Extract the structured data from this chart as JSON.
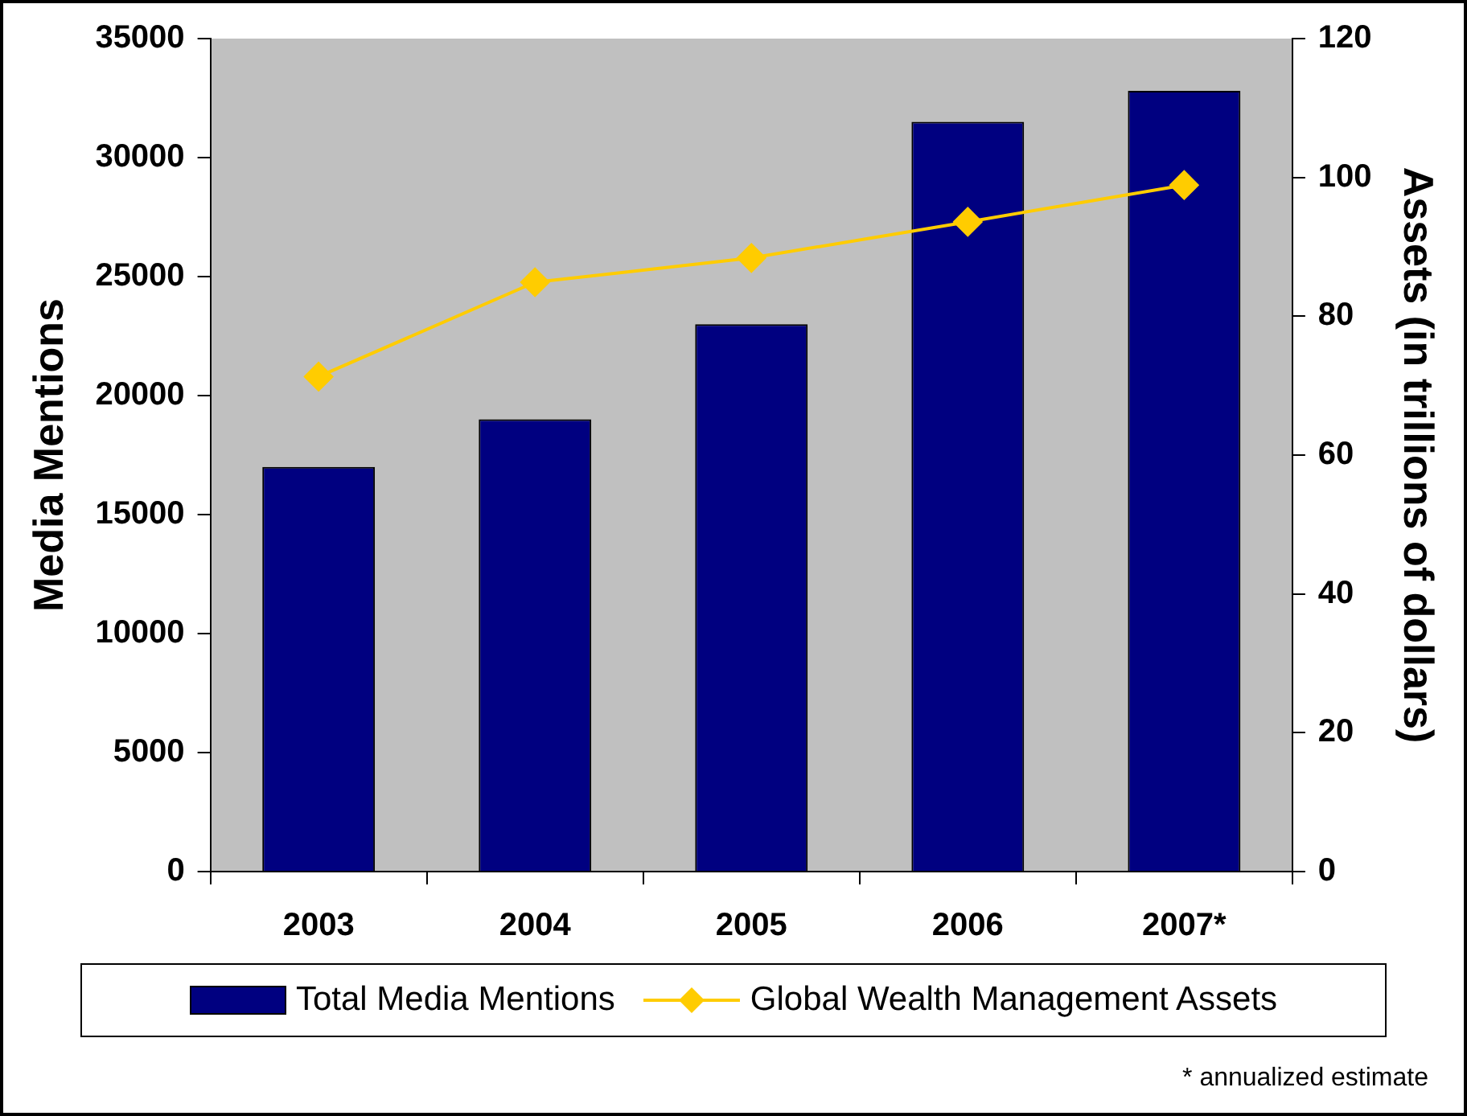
{
  "chart_data": {
    "type": "bar",
    "categories": [
      "2003",
      "2004",
      "2005",
      "2006",
      "2007*"
    ],
    "series": [
      {
        "name": "Total Media Mentions",
        "color": "#000080",
        "values": [
          17000,
          19000,
          23000,
          31500,
          32800
        ]
      },
      {
        "name": "Global Wealth Management Assets",
        "type": "line",
        "axis": "y2",
        "color": "#ffcc00",
        "values": [
          71.3,
          84.9,
          88.4,
          93.6,
          98.9
        ]
      }
    ],
    "ylabel": "Media Mentions",
    "y2label": "Assets (in trillions of dollars)",
    "ylim": [
      0,
      35000
    ],
    "yticks": [
      0,
      5000,
      10000,
      15000,
      20000,
      25000,
      30000,
      35000
    ],
    "y2lim": [
      0,
      120
    ],
    "y2ticks": [
      0,
      20,
      40,
      60,
      80,
      100,
      120
    ],
    "marker": "diamond",
    "legend": "bottom",
    "annotations": [
      "* annualized estimate"
    ]
  }
}
